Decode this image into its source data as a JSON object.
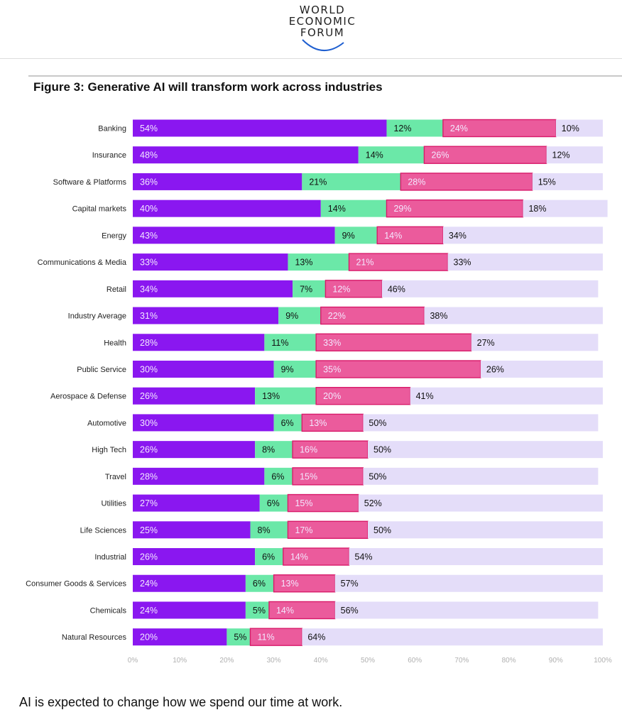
{
  "logo": {
    "lines": [
      "WORLD",
      "ECONOMIC",
      "FORUM"
    ]
  },
  "figure_title": "Figure 3: Generative AI will transform work across industries",
  "caption": "AI is expected to change how we spend our time at work.",
  "colors": {
    "seg1": "#8a17f0",
    "seg2": "#6be8a8",
    "seg3": "#eb5b9c",
    "seg3_border": "#d81b6a",
    "remainder": "#e4ddf9",
    "label_light": "#f3e8ff",
    "label_dark": "#111111",
    "category_text": "#222222",
    "axis_text": "#b0b0b0"
  },
  "chart_data": {
    "type": "bar",
    "orientation": "horizontal",
    "stacked": true,
    "title": "Figure 3: Generative AI will transform work across industries",
    "xlim": [
      0,
      100
    ],
    "xticks": [
      "0%",
      "10%",
      "20%",
      "30%",
      "40%",
      "50%",
      "60%",
      "70%",
      "80%",
      "90%",
      "100%"
    ],
    "grid": false,
    "legend": "none",
    "categories": [
      "Banking",
      "Insurance",
      "Software & Platforms",
      "Capital markets",
      "Energy",
      "Communications & Media",
      "Retail",
      "Industry Average",
      "Health",
      "Public Service",
      "Aerospace & Defense",
      "Automotive",
      "High Tech",
      "Travel",
      "Utilities",
      "Life Sciences",
      "Industrial",
      "Consumer Goods & Services",
      "Chemicals",
      "Natural Resources"
    ],
    "series": [
      {
        "values": [
          54,
          48,
          36,
          40,
          43,
          33,
          34,
          31,
          28,
          30,
          26,
          30,
          26,
          28,
          27,
          25,
          26,
          24,
          24,
          20
        ]
      },
      {
        "values": [
          12,
          14,
          21,
          14,
          9,
          13,
          7,
          9,
          11,
          9,
          13,
          6,
          8,
          6,
          6,
          8,
          6,
          6,
          5,
          5
        ]
      },
      {
        "values": [
          24,
          26,
          28,
          29,
          14,
          21,
          12,
          22,
          33,
          35,
          20,
          13,
          16,
          15,
          15,
          17,
          14,
          13,
          14,
          11
        ]
      },
      {
        "values": [
          10,
          12,
          15,
          18,
          34,
          33,
          46,
          38,
          27,
          26,
          41,
          50,
          50,
          50,
          52,
          50,
          54,
          57,
          56,
          64
        ]
      }
    ]
  }
}
